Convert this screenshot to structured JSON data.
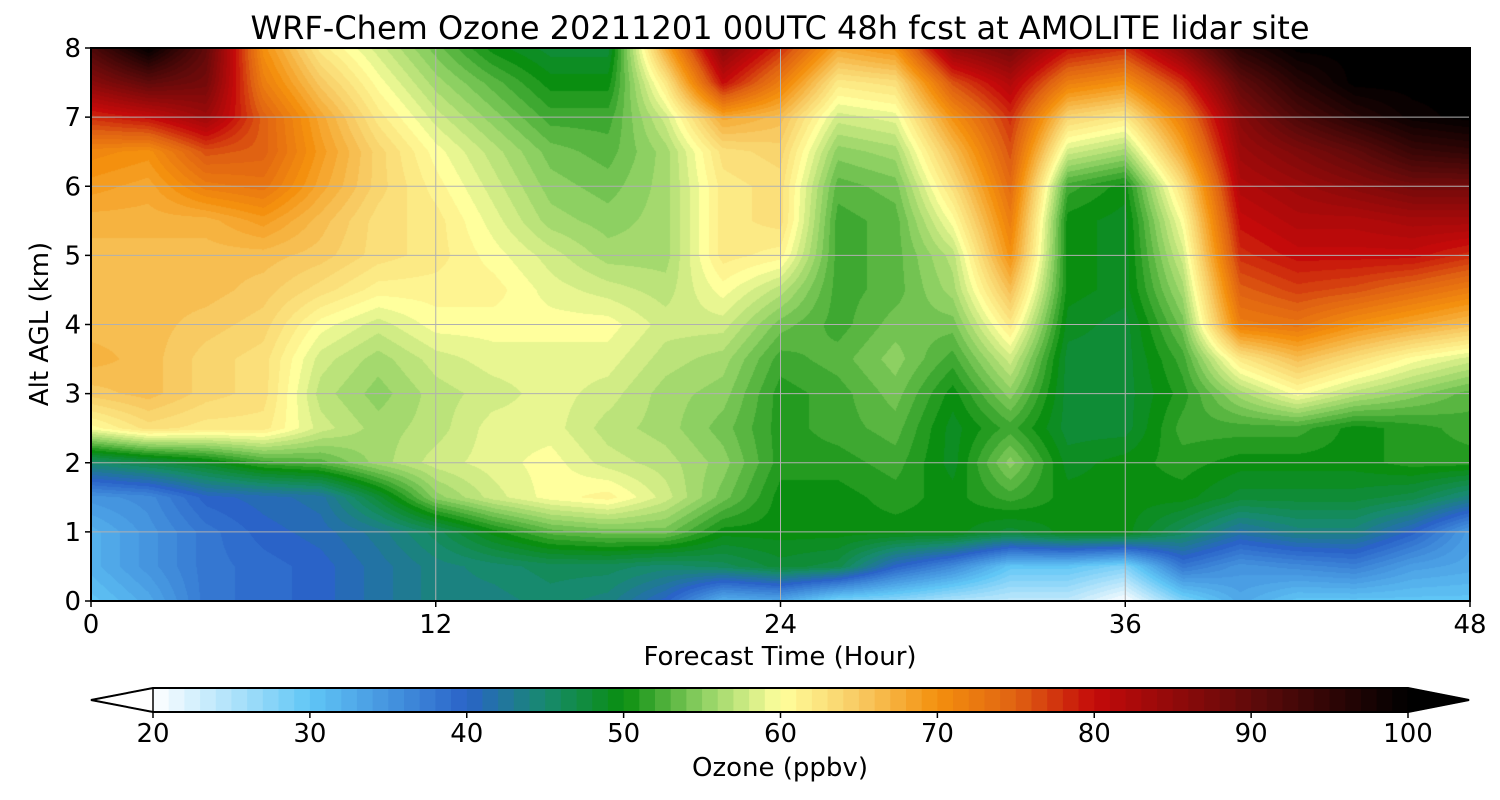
{
  "chart_data": {
    "type": "heatmap",
    "subtype": "filled-contour",
    "title": "WRF-Chem Ozone  20211201 00UTC 48h fcst at AMOLITE lidar site",
    "xlabel": "Forecast Time (Hour)",
    "ylabel": "Alt AGL (km)",
    "xlim": [
      0,
      48
    ],
    "ylim": [
      0,
      8
    ],
    "xticks": [
      0,
      12,
      24,
      36,
      48
    ],
    "yticks": [
      0,
      1,
      2,
      3,
      4,
      5,
      6,
      7,
      8
    ],
    "grid": true,
    "x_hours": [
      0,
      2,
      4,
      6,
      8,
      10,
      12,
      14,
      16,
      18,
      20,
      22,
      24,
      26,
      28,
      30,
      32,
      34,
      36,
      38,
      40,
      42,
      44,
      46,
      48
    ],
    "y_km": [
      0,
      0.5,
      1,
      1.5,
      2,
      2.5,
      3,
      3.5,
      4,
      4.5,
      5,
      5.5,
      6,
      6.5,
      7,
      7.5,
      8
    ],
    "values_ppbv": [
      [
        30,
        33,
        38,
        39,
        40,
        42,
        44,
        44,
        45,
        44,
        40,
        32,
        33,
        28,
        27,
        25,
        24,
        24,
        20,
        28,
        33,
        30,
        30,
        30,
        30
      ],
      [
        32,
        35,
        38,
        39,
        40,
        42,
        44,
        45,
        46,
        46,
        45,
        46,
        48,
        47,
        40,
        36,
        30,
        30,
        28,
        38,
        35,
        36,
        37,
        34,
        33
      ],
      [
        32,
        35,
        38,
        40,
        41,
        43,
        46,
        50,
        53,
        54,
        54,
        50,
        50,
        50,
        50,
        50,
        48,
        50,
        50,
        46,
        42,
        44,
        44,
        40,
        34
      ],
      [
        35,
        36,
        40,
        41,
        42,
        48,
        55,
        58,
        60,
        61,
        58,
        54,
        50,
        50,
        51,
        50,
        52,
        50,
        50,
        50,
        48,
        48,
        48,
        47,
        44
      ],
      [
        45,
        47,
        49,
        52,
        53,
        56,
        58,
        59,
        60,
        58,
        57,
        55,
        51,
        51,
        52,
        49,
        55,
        49,
        50,
        51,
        50,
        50,
        50,
        51,
        51
      ],
      [
        60,
        63,
        62,
        62,
        58,
        56,
        57,
        59,
        59,
        57,
        56,
        54,
        51,
        52,
        53,
        49,
        52,
        48,
        48,
        52,
        52,
        52,
        50,
        51,
        52
      ],
      [
        65,
        66,
        64,
        63,
        57,
        55,
        57,
        58,
        59,
        58,
        56,
        55,
        51,
        52,
        54,
        50,
        55,
        48,
        48,
        51,
        56,
        60,
        57,
        55,
        53
      ],
      [
        67,
        66,
        64,
        63,
        58,
        56,
        58,
        59,
        59,
        59,
        57,
        56,
        52,
        53,
        55,
        52,
        58,
        48,
        48,
        52,
        62,
        66,
        63,
        60,
        58
      ],
      [
        66,
        66,
        65,
        64,
        60,
        58,
        60,
        60,
        60,
        60,
        58,
        58,
        54,
        52,
        54,
        54,
        62,
        49,
        48,
        54,
        72,
        73,
        70,
        68,
        66
      ],
      [
        66,
        66,
        66,
        65,
        63,
        61,
        61,
        61,
        59,
        58,
        57,
        60,
        57,
        52,
        53,
        56,
        66,
        50,
        49,
        56,
        75,
        77,
        76,
        74,
        72
      ],
      [
        66,
        66,
        66,
        66,
        65,
        63,
        62,
        60,
        58,
        56,
        56,
        62,
        61,
        52,
        53,
        57,
        70,
        50,
        49,
        58,
        78,
        80,
        80,
        80,
        78
      ],
      [
        67,
        67,
        67,
        69,
        66,
        63,
        62,
        59,
        56,
        55,
        56,
        62,
        63,
        52,
        53,
        60,
        72,
        50,
        49,
        60,
        80,
        82,
        82,
        83,
        83
      ],
      [
        69,
        68,
        72,
        73,
        68,
        64,
        61,
        58,
        55,
        54,
        56,
        62,
        63,
        53,
        54,
        63,
        74,
        52,
        50,
        63,
        82,
        84,
        86,
        88,
        88
      ],
      [
        71,
        70,
        76,
        75,
        69,
        64,
        60,
        57,
        54,
        53,
        56,
        63,
        64,
        55,
        56,
        66,
        76,
        58,
        56,
        68,
        84,
        87,
        90,
        94,
        95
      ],
      [
        78,
        80,
        84,
        75,
        68,
        62,
        58,
        55,
        52,
        52,
        58,
        68,
        66,
        58,
        59,
        70,
        78,
        64,
        62,
        72,
        86,
        92,
        96,
        99,
        100
      ],
      [
        86,
        90,
        88,
        72,
        65,
        60,
        56,
        53,
        50,
        50,
        62,
        80,
        72,
        62,
        63,
        76,
        82,
        72,
        70,
        78,
        90,
        96,
        100,
        100,
        100
      ],
      [
        92,
        100,
        90,
        70,
        62,
        58,
        54,
        50,
        48,
        48,
        68,
        86,
        78,
        68,
        70,
        85,
        88,
        80,
        78,
        86,
        96,
        100,
        100,
        100,
        100
      ]
    ],
    "colorbar": {
      "label": "Ozone  (ppbv)",
      "min": 20,
      "max": 100,
      "step": 1,
      "ticks": [
        20,
        30,
        40,
        50,
        60,
        70,
        80,
        90,
        100
      ],
      "extend": "both",
      "orientation": "horizontal",
      "color_stops": [
        {
          "v": 20,
          "c": "#ffffff"
        },
        {
          "v": 30,
          "c": "#60c6f6"
        },
        {
          "v": 40,
          "c": "#2a63c8"
        },
        {
          "v": 45,
          "c": "#178a6e"
        },
        {
          "v": 50,
          "c": "#0a8e10"
        },
        {
          "v": 55,
          "c": "#8dd062"
        },
        {
          "v": 60,
          "c": "#ffff9d"
        },
        {
          "v": 65,
          "c": "#f8ca62"
        },
        {
          "v": 70,
          "c": "#f4900e"
        },
        {
          "v": 75,
          "c": "#e06212"
        },
        {
          "v": 80,
          "c": "#c40a0a"
        },
        {
          "v": 90,
          "c": "#600a0a"
        },
        {
          "v": 100,
          "c": "#000000"
        }
      ]
    }
  }
}
